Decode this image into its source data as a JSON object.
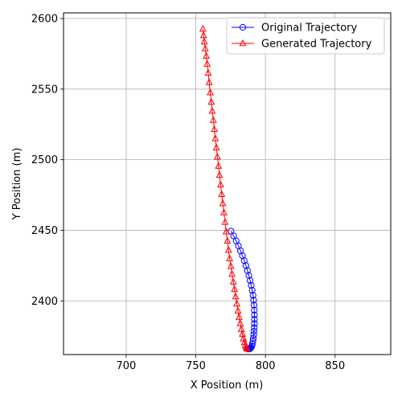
{
  "chart_data": {
    "type": "line",
    "title": "",
    "xlabel": "X Position (m)",
    "ylabel": "Y Position (m)",
    "xlim": [
      655,
      890
    ],
    "ylim": [
      2362,
      2604
    ],
    "xticks": [
      700,
      750,
      800,
      850
    ],
    "yticks": [
      2400,
      2450,
      2500,
      2550,
      2600
    ],
    "grid": true,
    "legend_position": "top-right",
    "series": [
      {
        "name": "Original Trajectory",
        "color": "#0000ff",
        "marker": "circle",
        "x": [
          775.3,
          777.2,
          779.0,
          780.6,
          782.1,
          783.5,
          784.8,
          786.0,
          787.1,
          788.1,
          789.0,
          789.8,
          790.5,
          791.1,
          791.5,
          791.8,
          792.0,
          792.1,
          792.1,
          792.1,
          792.0,
          791.8,
          791.6,
          791.3,
          791.0,
          790.6,
          790.2,
          789.7,
          789.2,
          788.7,
          788.2,
          787.7,
          787.2
        ],
        "y": [
          2449.4,
          2446.0,
          2442.5,
          2439.0,
          2435.5,
          2432.0,
          2428.5,
          2425.0,
          2421.5,
          2418.0,
          2414.5,
          2411.0,
          2407.5,
          2404.0,
          2400.5,
          2397.0,
          2393.5,
          2390.0,
          2387.0,
          2384.0,
          2381.0,
          2378.5,
          2376.0,
          2373.5,
          2371.5,
          2369.5,
          2368.0,
          2367.0,
          2366.5,
          2366.0,
          2366.0,
          2366.0,
          2366.0
        ]
      },
      {
        "name": "Generated Trajectory",
        "color": "#ff0000",
        "marker": "triangle",
        "x": [
          755.1,
          755.6,
          756.1,
          756.8,
          757.5,
          758.2,
          758.9,
          759.6,
          760.4,
          761.1,
          761.8,
          762.6,
          763.3,
          764.0,
          764.8,
          765.5,
          766.3,
          767.0,
          767.8,
          768.6,
          769.4,
          770.2,
          771.0,
          771.8,
          772.7,
          773.5,
          774.3,
          775.2,
          776.0,
          776.9,
          777.8,
          778.6,
          779.5,
          780.3,
          781.1,
          781.9,
          782.7,
          783.5,
          784.2,
          784.9,
          785.5,
          786.1,
          786.6,
          787.0
        ],
        "y": [
          2592.6,
          2588.0,
          2583.5,
          2578.7,
          2573.5,
          2567.8,
          2561.5,
          2554.8,
          2547.5,
          2540.8,
          2534.5,
          2528.0,
          2521.5,
          2515.0,
          2508.5,
          2502.0,
          2495.5,
          2489.0,
          2482.3,
          2475.5,
          2469.0,
          2462.5,
          2455.8,
          2449.0,
          2442.5,
          2436.0,
          2430.0,
          2424.5,
          2419.0,
          2413.5,
          2408.2,
          2403.0,
          2398.0,
          2393.0,
          2388.5,
          2384.0,
          2380.0,
          2376.5,
          2373.3,
          2370.5,
          2368.5,
          2367.2,
          2366.5,
          2366.0
        ]
      }
    ]
  }
}
